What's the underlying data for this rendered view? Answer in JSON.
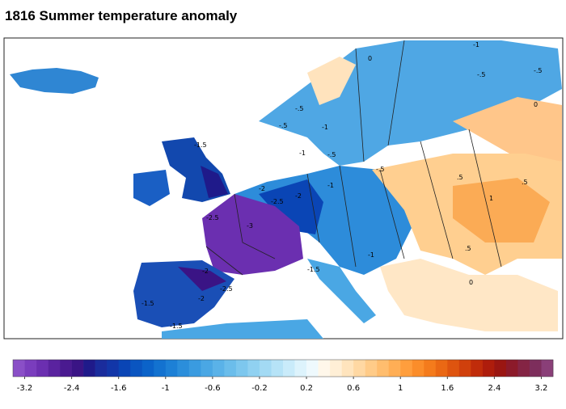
{
  "title": "1816 Summer temperature anomaly",
  "map": {
    "contour_labels": [
      "0",
      "-1",
      "-.5",
      "-.5",
      "-.5",
      "-1",
      "-.5",
      "0",
      "-1.5",
      "-1",
      "-.5",
      "-.5",
      "-1",
      "-2",
      "-2.5",
      "-2",
      "-3",
      "-2.5",
      "-1.5",
      "-2",
      "-2.5",
      "-1.5",
      "-2",
      "-1.5",
      "-1",
      ".5",
      ".5",
      "1",
      ".5",
      "0"
    ]
  },
  "colorbar": {
    "colors": [
      "#8a4fc7",
      "#7a3dbd",
      "#6b2fb0",
      "#5a239f",
      "#4a1a90",
      "#3a1485",
      "#1f1a8a",
      "#1a2c9c",
      "#1236a8",
      "#0a45b5",
      "#0a55c0",
      "#0b63c9",
      "#1372d0",
      "#1d80d6",
      "#2b8edb",
      "#3a9be0",
      "#4aa7e4",
      "#5ab2e8",
      "#6bbdeb",
      "#7dc7ee",
      "#90d1f1",
      "#a3daf4",
      "#b6e3f7",
      "#c9ebfa",
      "#ddf3fc",
      "#eef9fd",
      "#fff7ea",
      "#ffefd6",
      "#ffe4bd",
      "#ffd8a3",
      "#ffcb88",
      "#ffbd6e",
      "#ffae55",
      "#ff9e3d",
      "#fb8d2a",
      "#f47b1c",
      "#ea6814",
      "#de540f",
      "#d0400c",
      "#c02c0a",
      "#ae1d0c",
      "#9a1612",
      "#8c1a2a",
      "#842444",
      "#7d2e5c",
      "#8a3f78"
    ],
    "ticks": [
      -3.2,
      -2.4,
      -1.6,
      -1,
      -0.6,
      -0.2,
      0.2,
      0.6,
      1,
      1.6,
      2.4,
      3.2
    ]
  }
}
